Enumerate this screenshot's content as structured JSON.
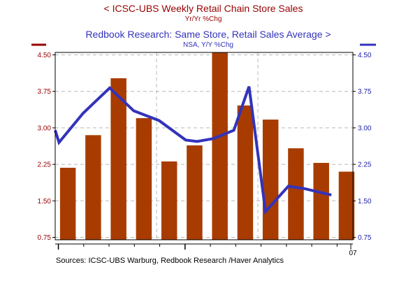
{
  "chart_data": {
    "type": "bar",
    "left_series": {
      "title": "<  ICSC-UBS Weekly Retail Chain Store Sales",
      "subtitle": "Yr/Yr %Chg",
      "chart_type": "bar",
      "color": "#a83c00",
      "legend_line_color": "#990000",
      "values": [
        2.18,
        2.85,
        4.02,
        3.2,
        2.31,
        2.64,
        4.55,
        3.46,
        3.17,
        2.58,
        2.28,
        2.1
      ]
    },
    "right_series": {
      "title": "Redbook Research: Same Store, Retail Sales Average  >",
      "subtitle": "NSA, Y/Y %Chg",
      "chart_type": "line",
      "color": "#3333bb",
      "x_index": [
        0.0,
        0.55,
        1.5,
        2.55,
        3.5,
        4.5,
        5.55,
        6.0,
        6.65,
        7.45,
        8.05,
        8.7,
        9.6,
        10.25,
        11.3
      ],
      "values": [
        2.95,
        2.7,
        3.3,
        3.82,
        3.35,
        3.15,
        2.75,
        2.72,
        2.78,
        2.95,
        3.85,
        1.28,
        1.8,
        1.75,
        1.62
      ]
    },
    "y_left_ticks": [
      "4.50",
      "3.75",
      "3.00",
      "2.25",
      "1.50",
      "0.75"
    ],
    "y_right_ticks": [
      "4.50",
      "3.75",
      "3.00",
      "2.25",
      "1.50",
      "0.75"
    ],
    "ylim": [
      0.7,
      4.55
    ],
    "x_tick_label": "07",
    "grid": true,
    "source": "Sources:  ICSC-UBS Warburg, Redbook Research /Haver Analytics",
    "colors": {
      "left_axis_text": "#990000",
      "right_axis_text": "#2222aa",
      "grid": "#b8b8b8",
      "axis": "#000000"
    }
  }
}
